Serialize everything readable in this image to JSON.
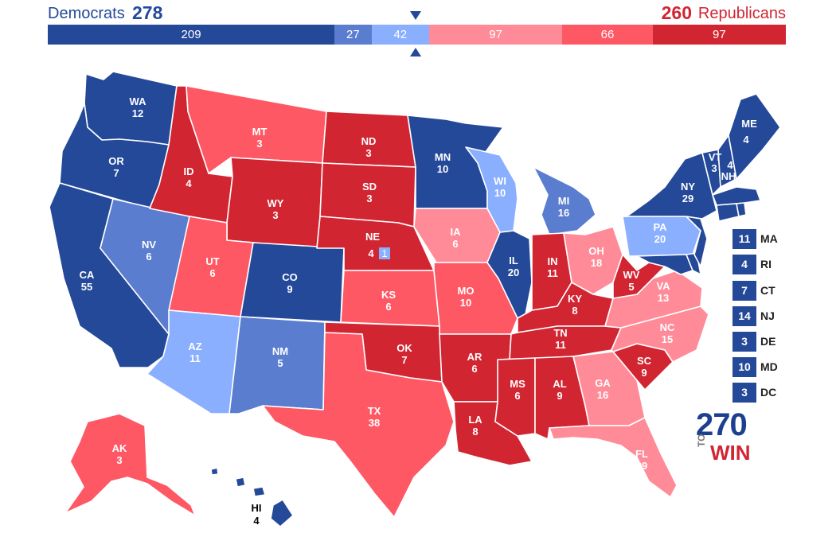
{
  "header": {
    "dem_label": "Democrats",
    "dem_total": "278",
    "rep_total": "260",
    "rep_label": "Republicans"
  },
  "bar": [
    {
      "label": "209",
      "value": 209,
      "color": "#244999"
    },
    {
      "label": "27",
      "value": 27,
      "color": "#5a7dcf"
    },
    {
      "label": "42",
      "value": 42,
      "color": "#8aafff"
    },
    {
      "label": "97",
      "value": 97,
      "color": "#ff8b98"
    },
    {
      "label": "66",
      "value": 66,
      "color": "#ff5865"
    },
    {
      "label": "97",
      "value": 97,
      "color": "#d22532"
    }
  ],
  "legend_colors": {
    "safe_dem": "#244999",
    "likely_dem": "#5a7dcf",
    "lean_dem": "#8aafff",
    "lean_rep": "#ff8b98",
    "likely_rep": "#ff5865",
    "safe_rep": "#d22532"
  },
  "states": {
    "WA": {
      "name": "WA",
      "ev": "12"
    },
    "OR": {
      "name": "OR",
      "ev": "7"
    },
    "CA": {
      "name": "CA",
      "ev": "55"
    },
    "NV": {
      "name": "NV",
      "ev": "6"
    },
    "ID": {
      "name": "ID",
      "ev": "4"
    },
    "MT": {
      "name": "MT",
      "ev": "3"
    },
    "WY": {
      "name": "WY",
      "ev": "3"
    },
    "UT": {
      "name": "UT",
      "ev": "6"
    },
    "AZ": {
      "name": "AZ",
      "ev": "11"
    },
    "CO": {
      "name": "CO",
      "ev": "9"
    },
    "NM": {
      "name": "NM",
      "ev": "5"
    },
    "ND": {
      "name": "ND",
      "ev": "3"
    },
    "SD": {
      "name": "SD",
      "ev": "3"
    },
    "NE": {
      "name": "NE",
      "ev": "4",
      "district_ev": "1"
    },
    "KS": {
      "name": "KS",
      "ev": "6"
    },
    "OK": {
      "name": "OK",
      "ev": "7"
    },
    "TX": {
      "name": "TX",
      "ev": "38"
    },
    "MN": {
      "name": "MN",
      "ev": "10"
    },
    "IA": {
      "name": "IA",
      "ev": "6"
    },
    "MO": {
      "name": "MO",
      "ev": "10"
    },
    "AR": {
      "name": "AR",
      "ev": "6"
    },
    "LA": {
      "name": "LA",
      "ev": "8"
    },
    "WI": {
      "name": "WI",
      "ev": "10"
    },
    "IL": {
      "name": "IL",
      "ev": "20"
    },
    "MI": {
      "name": "MI",
      "ev": "16"
    },
    "IN": {
      "name": "IN",
      "ev": "11"
    },
    "OH": {
      "name": "OH",
      "ev": "18"
    },
    "KY": {
      "name": "KY",
      "ev": "8"
    },
    "TN": {
      "name": "TN",
      "ev": "11"
    },
    "MS": {
      "name": "MS",
      "ev": "6"
    },
    "AL": {
      "name": "AL",
      "ev": "9"
    },
    "GA": {
      "name": "GA",
      "ev": "16"
    },
    "FL": {
      "name": "FL",
      "ev": "29"
    },
    "SC": {
      "name": "SC",
      "ev": "9"
    },
    "NC": {
      "name": "NC",
      "ev": "15"
    },
    "VA": {
      "name": "VA",
      "ev": "13"
    },
    "WV": {
      "name": "WV",
      "ev": "5"
    },
    "PA": {
      "name": "PA",
      "ev": "20"
    },
    "NY": {
      "name": "NY",
      "ev": "29"
    },
    "VT": {
      "name": "VT",
      "ev": "3"
    },
    "NH": {
      "name": "NH",
      "ev": "4"
    },
    "ME": {
      "name": "ME",
      "ev": "4"
    },
    "AK": {
      "name": "AK",
      "ev": "3"
    },
    "HI": {
      "name": "HI",
      "ev": "4"
    }
  },
  "small_states": [
    {
      "ev": "11",
      "name": "MA"
    },
    {
      "ev": "4",
      "name": "RI"
    },
    {
      "ev": "7",
      "name": "CT"
    },
    {
      "ev": "14",
      "name": "NJ"
    },
    {
      "ev": "3",
      "name": "DE"
    },
    {
      "ev": "10",
      "name": "MD"
    },
    {
      "ev": "3",
      "name": "DC"
    }
  ],
  "logo": {
    "number": "270",
    "to": "TO",
    "win": "WIN"
  }
}
